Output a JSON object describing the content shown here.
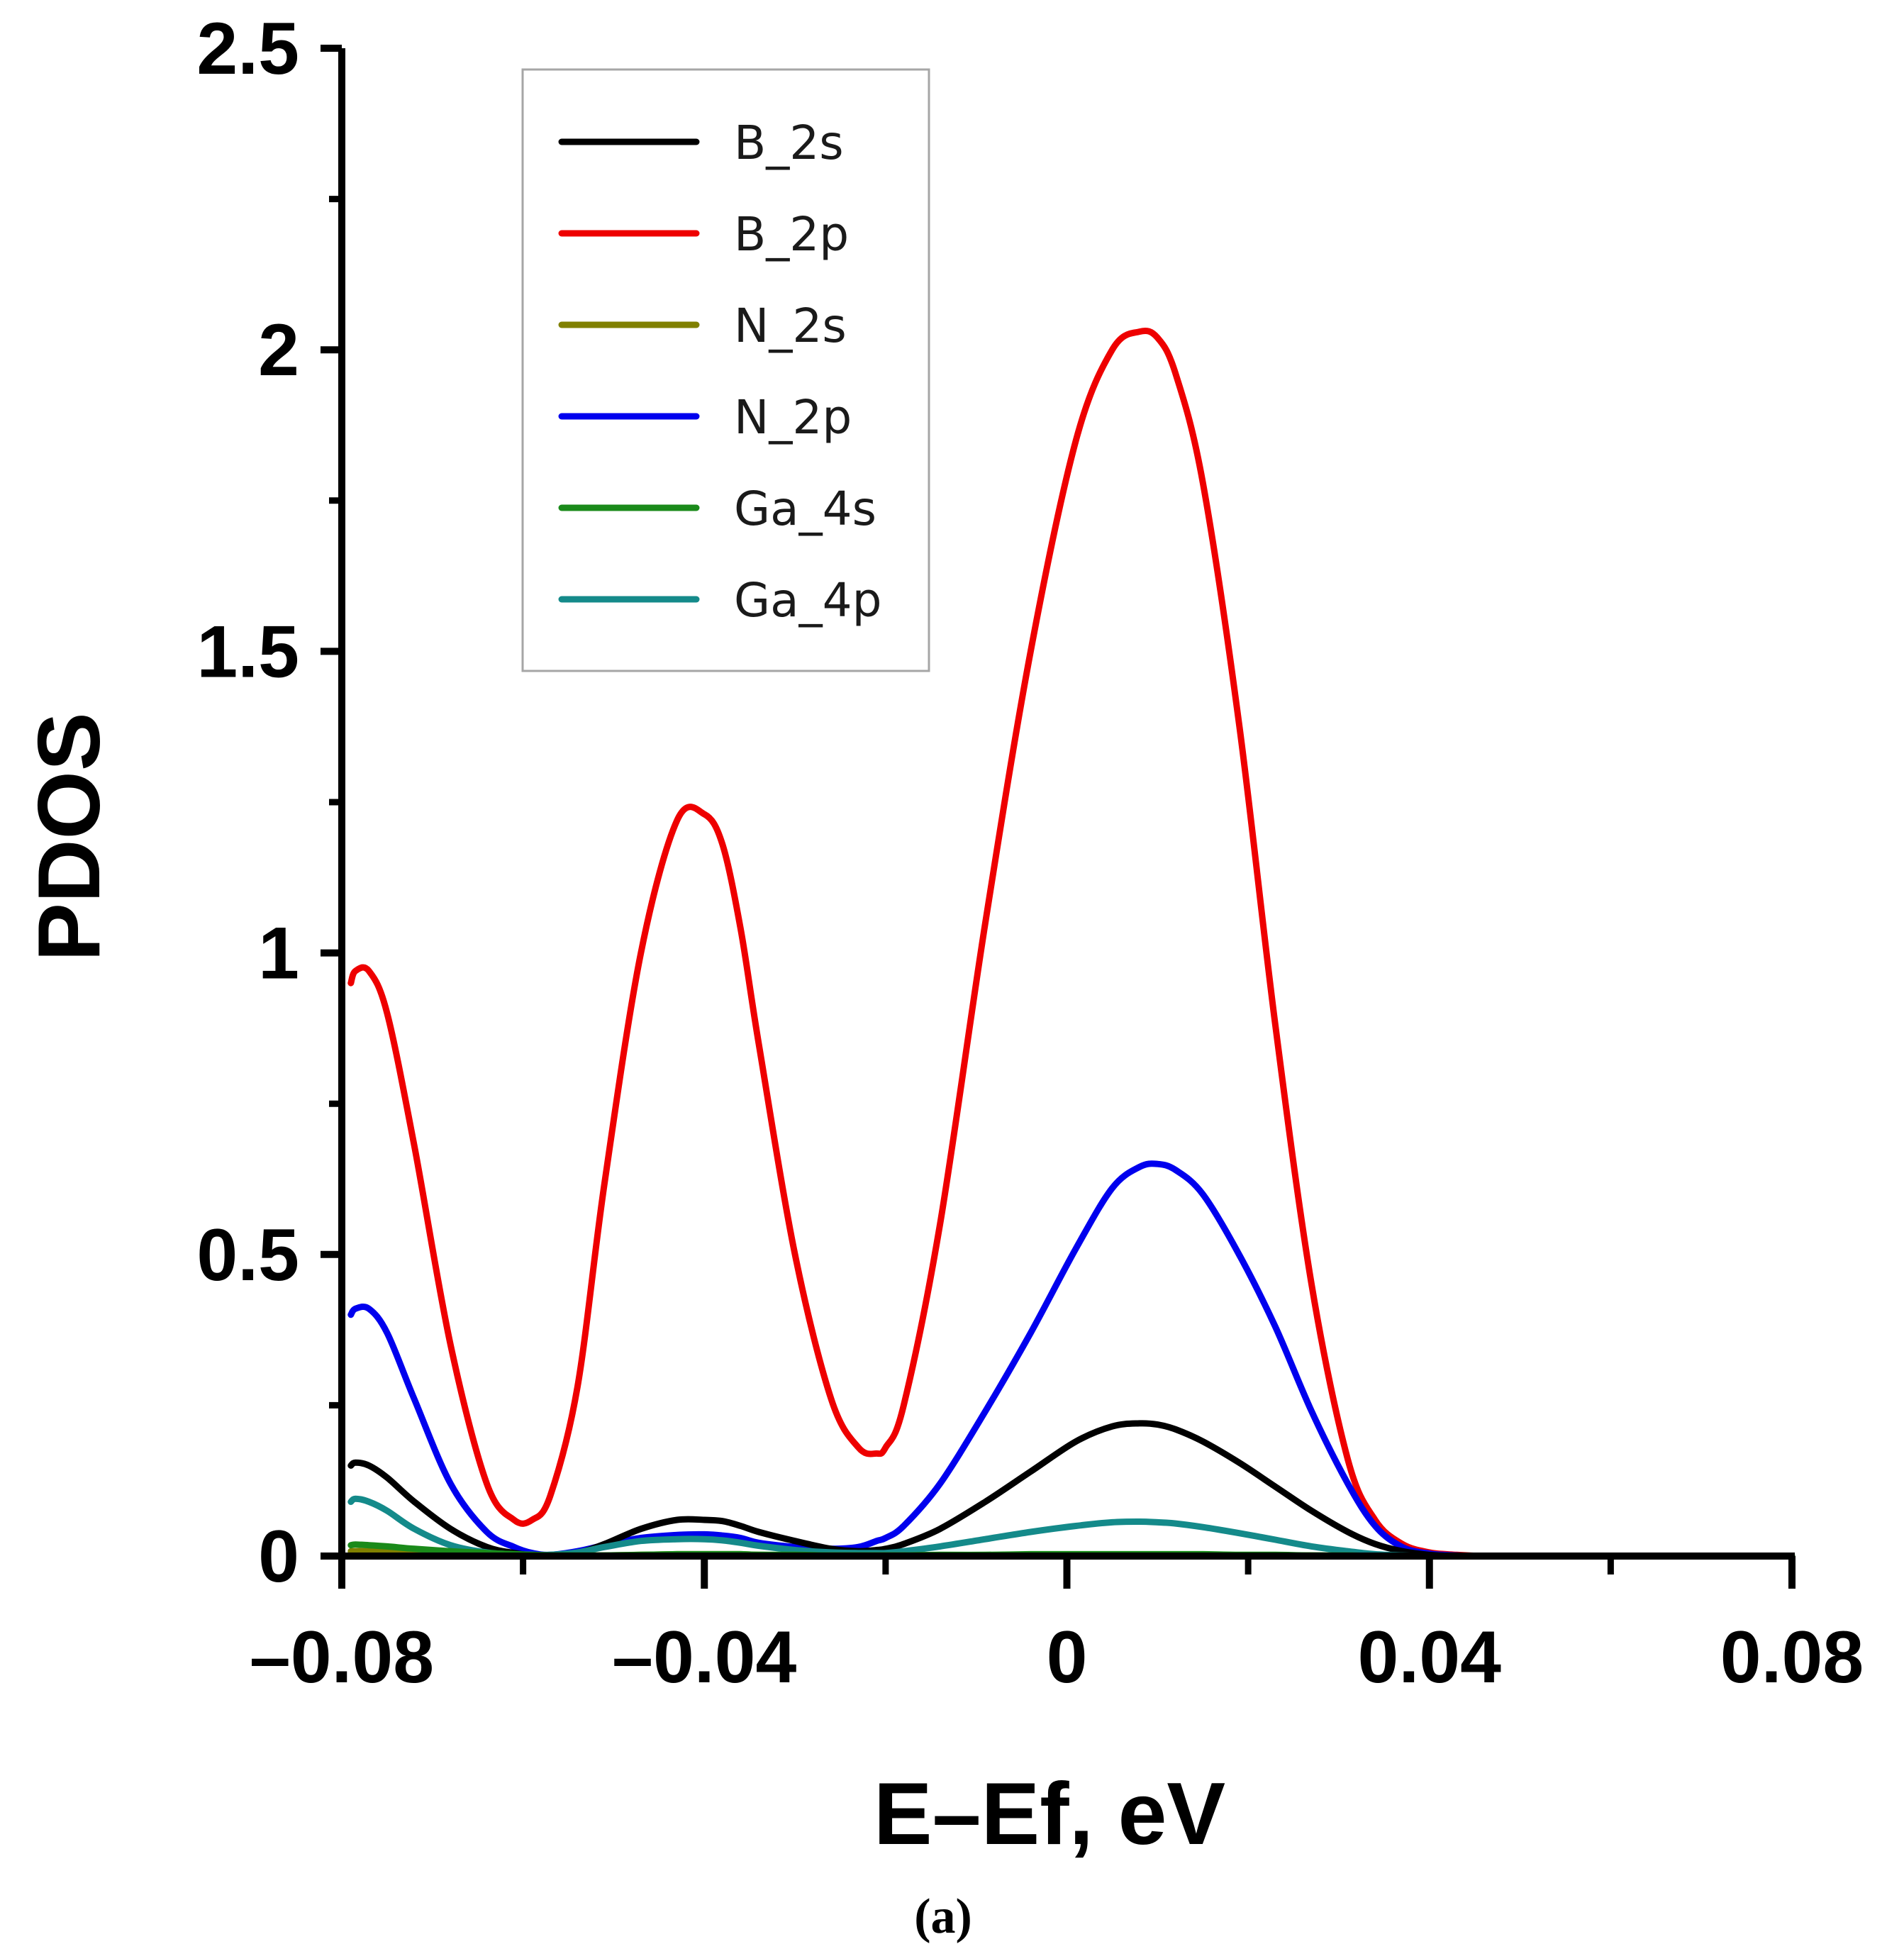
{
  "chart_data": {
    "type": "line",
    "title": "",
    "xlabel": "E–Ef, eV",
    "ylabel": "PDOS",
    "caption": "(a)",
    "xlim": [
      -0.08,
      0.08
    ],
    "ylim": [
      0,
      2.5
    ],
    "x_ticks": [
      -0.08,
      -0.04,
      0,
      0.04,
      0.08
    ],
    "x_tick_labels": [
      "–0.08",
      "–0.04",
      "0",
      "0.04",
      "0.08"
    ],
    "y_ticks": [
      0,
      0.5,
      1,
      1.5,
      2,
      2.5
    ],
    "y_tick_labels": [
      "0",
      "0.5",
      "1",
      "1.5",
      "2",
      "2.5"
    ],
    "grid": false,
    "legend_position": "top-left inside",
    "x": [
      -0.079,
      -0.0785,
      -0.077,
      -0.075,
      -0.072,
      -0.068,
      -0.064,
      -0.061,
      -0.059,
      -0.057,
      -0.054,
      -0.051,
      -0.047,
      -0.043,
      -0.04,
      -0.038,
      -0.036,
      -0.034,
      -0.03,
      -0.026,
      -0.023,
      -0.021,
      -0.02,
      -0.018,
      -0.014,
      -0.009,
      -0.004,
      0.001,
      0.005,
      0.008,
      0.01,
      0.012,
      0.015,
      0.019,
      0.023,
      0.027,
      0.031,
      0.034,
      0.037,
      0.04,
      0.043,
      0.046,
      0.05,
      0.055,
      0.06,
      0.065,
      0.07,
      0.075,
      0.08
    ],
    "series": [
      {
        "name": "B_2s",
        "color": "#000000",
        "values": [
          0.15,
          0.155,
          0.15,
          0.13,
          0.09,
          0.045,
          0.015,
          0.005,
          0.001,
          0.0,
          0.005,
          0.02,
          0.045,
          0.06,
          0.06,
          0.058,
          0.05,
          0.04,
          0.025,
          0.012,
          0.008,
          0.01,
          0.012,
          0.02,
          0.045,
          0.09,
          0.14,
          0.19,
          0.215,
          0.22,
          0.218,
          0.21,
          0.19,
          0.155,
          0.115,
          0.075,
          0.04,
          0.02,
          0.008,
          0.002,
          0.0,
          0.0,
          0.0,
          0.0,
          0.0,
          0.0,
          0.0,
          0.0,
          0.0
        ]
      },
      {
        "name": "B_2p",
        "color": "#ee0000",
        "values": [
          0.95,
          0.97,
          0.97,
          0.9,
          0.68,
          0.35,
          0.12,
          0.06,
          0.06,
          0.1,
          0.28,
          0.62,
          1.0,
          1.22,
          1.23,
          1.18,
          1.04,
          0.85,
          0.5,
          0.26,
          0.18,
          0.17,
          0.18,
          0.25,
          0.55,
          1.05,
          1.5,
          1.85,
          2.0,
          2.03,
          2.02,
          1.96,
          1.78,
          1.38,
          0.88,
          0.45,
          0.16,
          0.06,
          0.02,
          0.006,
          0.002,
          0.0,
          0.0,
          0.0,
          0.0,
          0.0,
          0.0,
          0.0,
          0.0
        ]
      },
      {
        "name": "N_2s",
        "color": "#808000",
        "values": [
          0.008,
          0.008,
          0.008,
          0.007,
          0.005,
          0.003,
          0.002,
          0.001,
          0.0,
          0.0,
          0.0,
          0.001,
          0.002,
          0.003,
          0.003,
          0.003,
          0.003,
          0.002,
          0.001,
          0.001,
          0.001,
          0.001,
          0.001,
          0.001,
          0.001,
          0.001,
          0.002,
          0.002,
          0.002,
          0.002,
          0.002,
          0.002,
          0.002,
          0.001,
          0.001,
          0.001,
          0.0,
          0.0,
          0.0,
          0.0,
          0.0,
          0.0,
          0.0,
          0.0,
          0.0,
          0.0,
          0.0,
          0.0,
          0.0
        ]
      },
      {
        "name": "N_2p",
        "color": "#0000ee",
        "values": [
          0.4,
          0.41,
          0.41,
          0.37,
          0.26,
          0.12,
          0.04,
          0.015,
          0.005,
          0.002,
          0.008,
          0.018,
          0.03,
          0.035,
          0.036,
          0.034,
          0.03,
          0.022,
          0.015,
          0.012,
          0.015,
          0.025,
          0.03,
          0.05,
          0.12,
          0.24,
          0.37,
          0.51,
          0.61,
          0.645,
          0.65,
          0.64,
          0.6,
          0.5,
          0.38,
          0.24,
          0.12,
          0.05,
          0.015,
          0.004,
          0.001,
          0.0,
          0.0,
          0.0,
          0.0,
          0.0,
          0.0,
          0.0,
          0.0
        ]
      },
      {
        "name": "Ga_4s",
        "color": "#1a8a1a",
        "values": [
          0.018,
          0.019,
          0.018,
          0.016,
          0.012,
          0.008,
          0.005,
          0.003,
          0.002,
          0.001,
          0.001,
          0.001,
          0.002,
          0.003,
          0.003,
          0.003,
          0.003,
          0.002,
          0.002,
          0.001,
          0.001,
          0.001,
          0.001,
          0.001,
          0.002,
          0.002,
          0.003,
          0.003,
          0.003,
          0.003,
          0.003,
          0.003,
          0.003,
          0.002,
          0.002,
          0.001,
          0.001,
          0.0,
          0.0,
          0.0,
          0.0,
          0.0,
          0.0,
          0.0,
          0.0,
          0.0,
          0.0,
          0.0,
          0.0
        ]
      },
      {
        "name": "Ga_4p",
        "color": "#148a8a",
        "values": [
          0.09,
          0.095,
          0.09,
          0.075,
          0.045,
          0.018,
          0.006,
          0.003,
          0.002,
          0.002,
          0.006,
          0.015,
          0.025,
          0.028,
          0.028,
          0.026,
          0.022,
          0.017,
          0.01,
          0.006,
          0.005,
          0.005,
          0.005,
          0.008,
          0.016,
          0.028,
          0.04,
          0.05,
          0.056,
          0.057,
          0.056,
          0.054,
          0.048,
          0.038,
          0.027,
          0.016,
          0.008,
          0.003,
          0.001,
          0.0,
          0.0,
          0.0,
          0.0,
          0.0,
          0.0,
          0.0,
          0.0,
          0.0,
          0.0
        ]
      }
    ]
  }
}
